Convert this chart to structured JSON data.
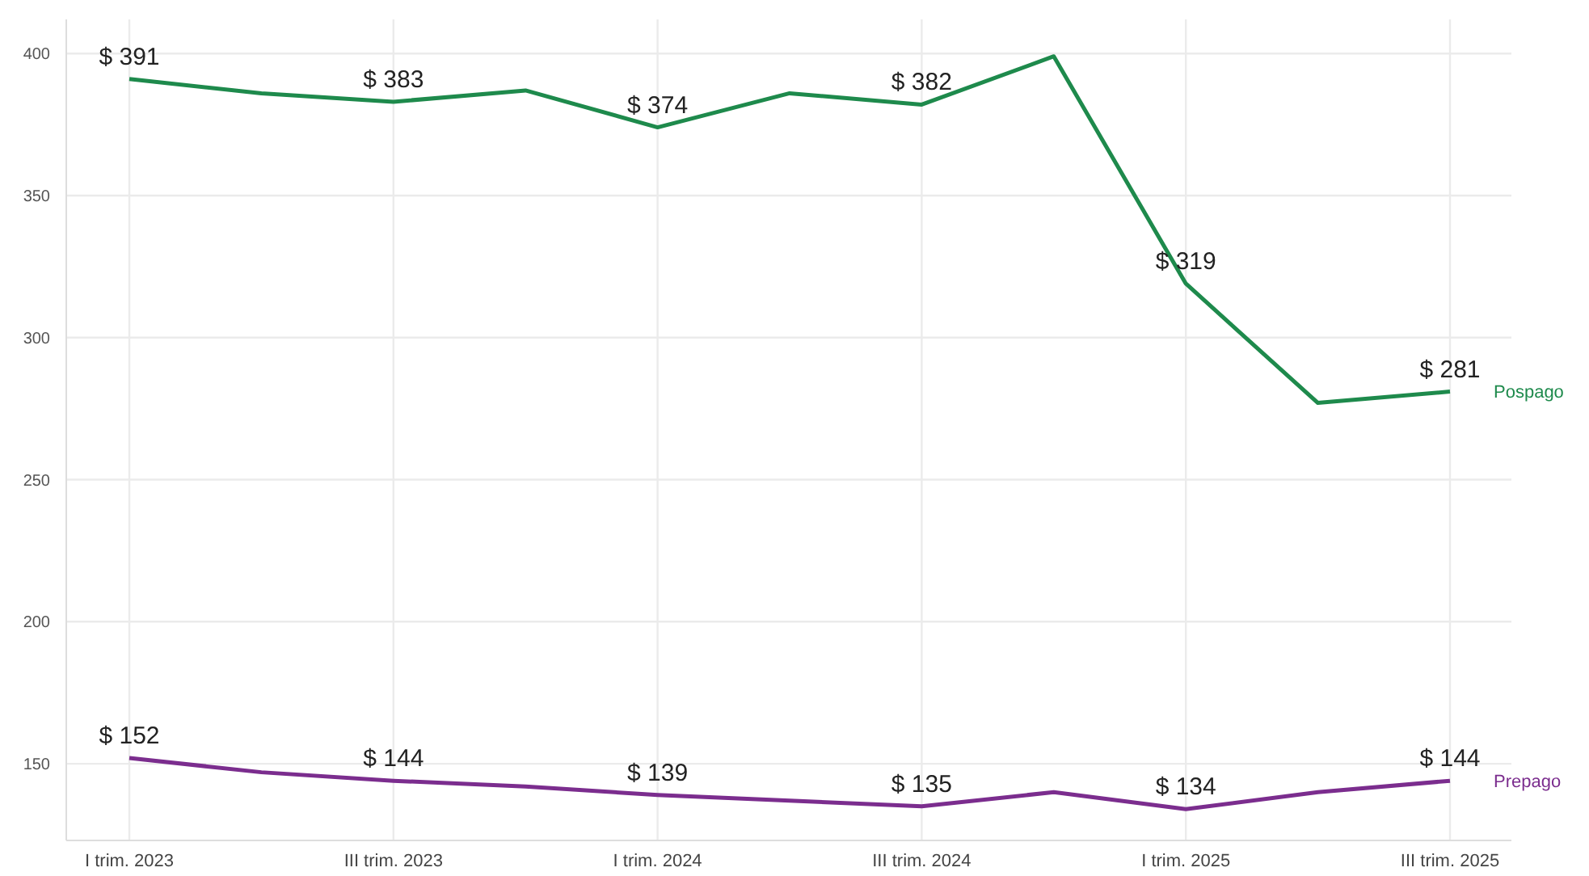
{
  "chart_data": {
    "type": "line",
    "categories": [
      "I trim. 2023",
      null,
      "III trim. 2023",
      null,
      "I trim. 2024",
      null,
      "III trim. 2024",
      null,
      "I trim. 2025",
      null,
      "III trim. 2025"
    ],
    "series": [
      {
        "name": "Pospago",
        "color": "#1e8a4c",
        "values": [
          391,
          386,
          383,
          387,
          374,
          386,
          382,
          399,
          319,
          277,
          281
        ],
        "value_labels": [
          "$ 391",
          null,
          "$ 383",
          null,
          "$ 374",
          null,
          "$ 382",
          null,
          "$ 319",
          null,
          "$ 281"
        ]
      },
      {
        "name": "Prepago",
        "color": "#7b2d8e",
        "values": [
          152,
          147,
          144,
          142,
          139,
          137,
          135,
          140,
          134,
          140,
          144
        ],
        "value_labels": [
          "$ 152",
          null,
          "$ 144",
          null,
          "$ 139",
          null,
          "$ 135",
          null,
          "$ 134",
          null,
          "$ 144"
        ]
      }
    ],
    "ylim": [
      123,
      412
    ],
    "yticks": [
      150,
      200,
      250,
      300,
      350,
      400
    ],
    "grid": true,
    "marker": "none",
    "line_style": "solid"
  }
}
